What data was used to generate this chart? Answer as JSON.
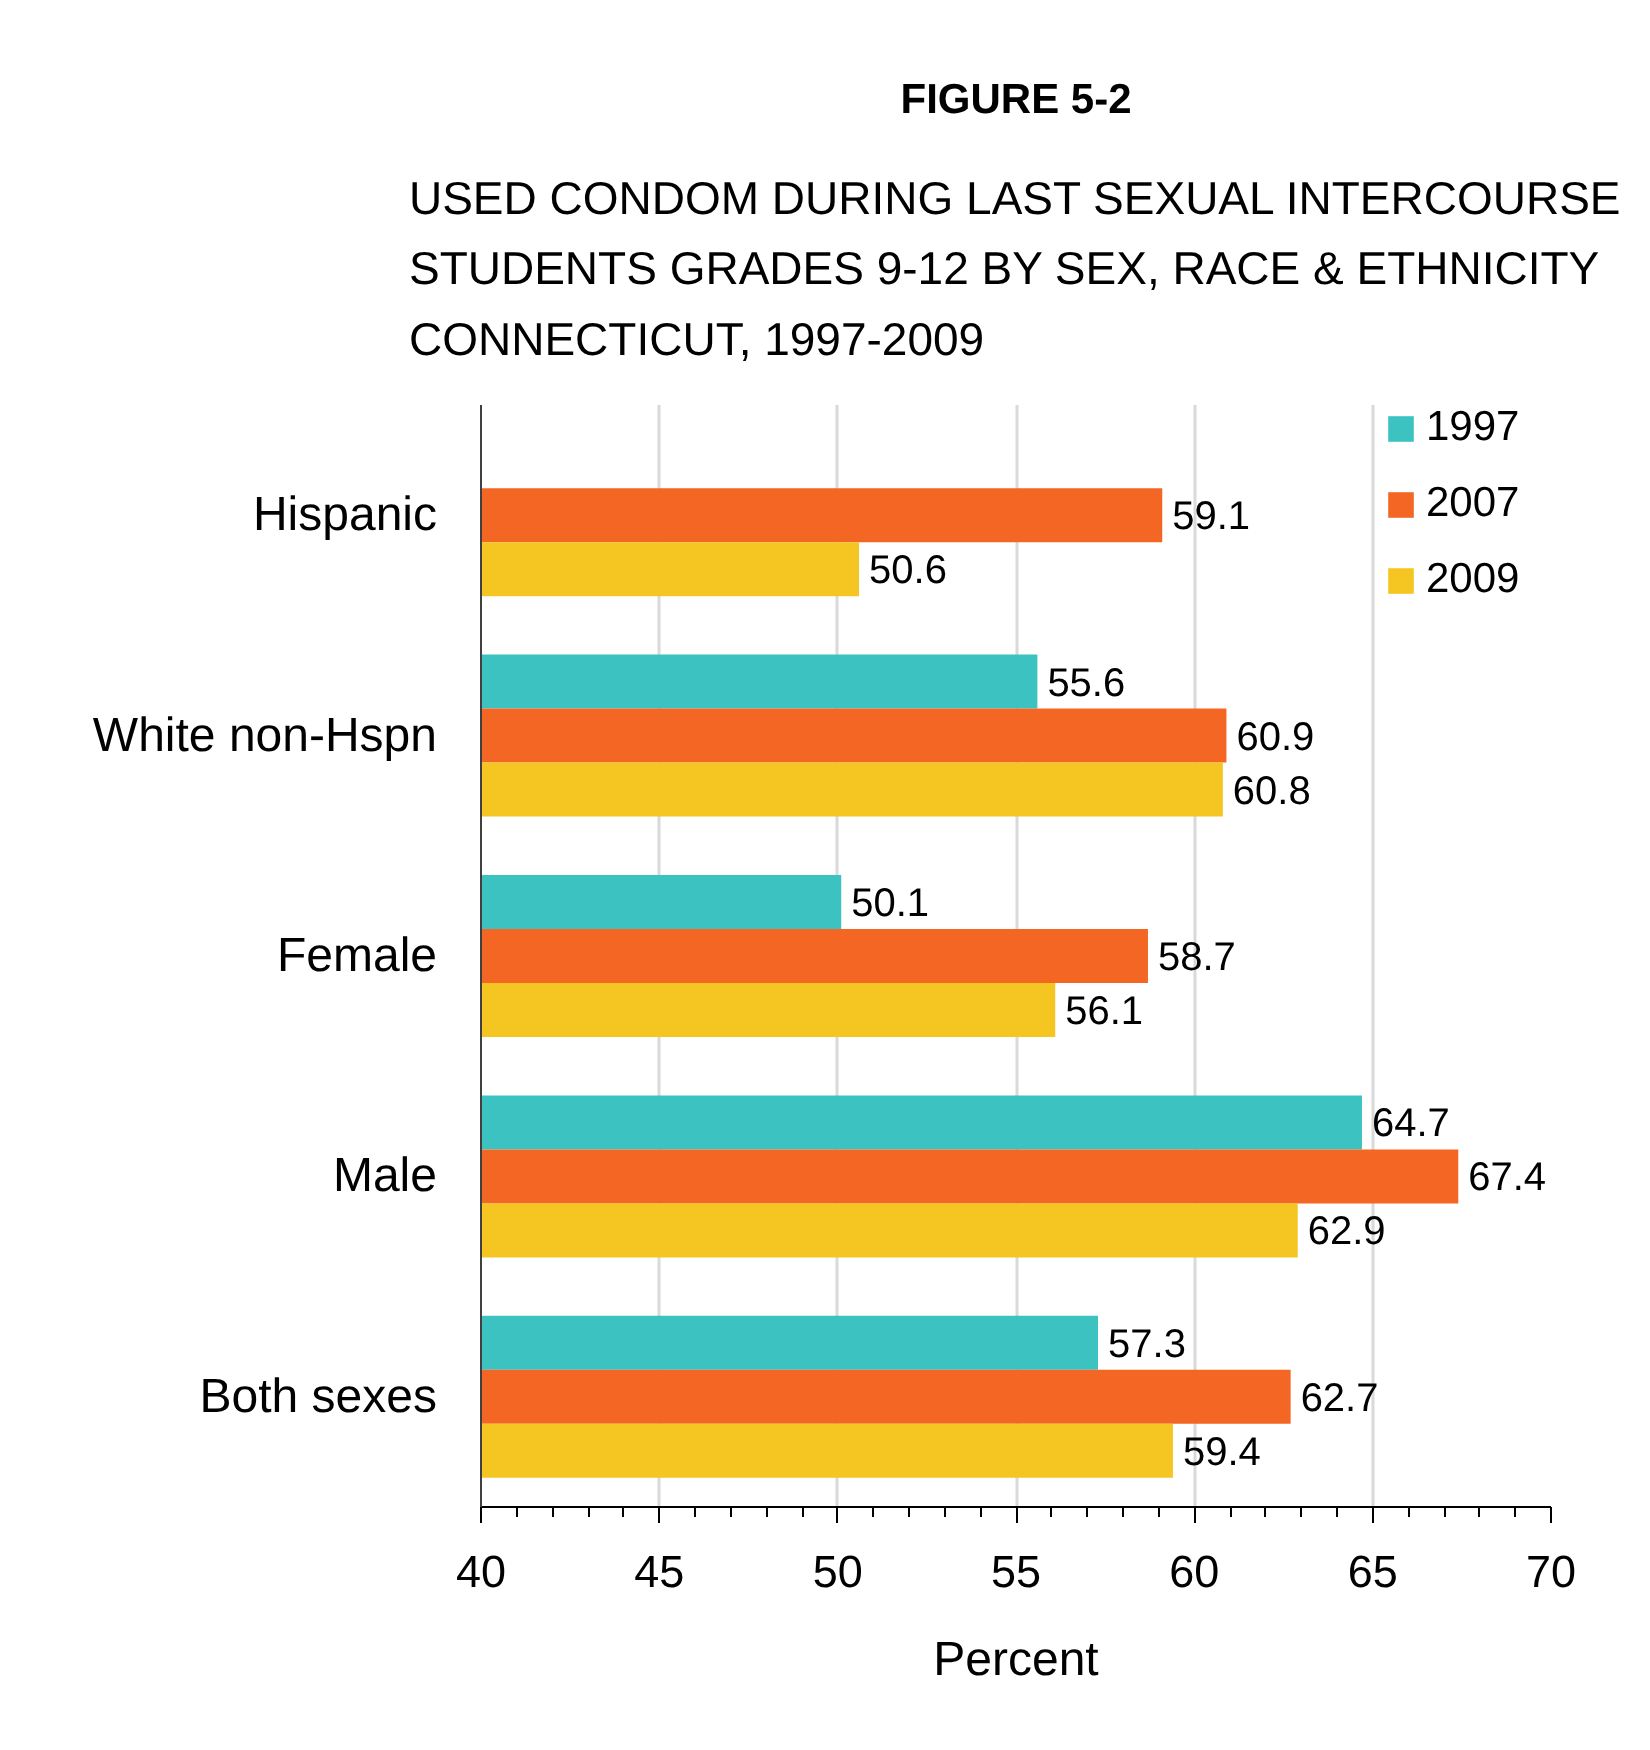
{
  "chart_data": {
    "type": "bar",
    "orientation": "horizontal",
    "title": "FIGURE 5-2",
    "subtitle": "USED CONDOM DURING LAST SEXUAL INTERCOURSE\nSTUDENTS GRADES 9-12 BY SEX, RACE & ETHNICITY\nCONNECTICUT, 1997-2009",
    "xlabel": "Percent",
    "categories": [
      "Hispanic",
      "White non-Hspn",
      "Female",
      "Male",
      "Both sexes"
    ],
    "series": [
      {
        "name": "1997",
        "color": "#3dc2c2",
        "values": [
          null,
          55.6,
          50.1,
          64.7,
          57.3
        ]
      },
      {
        "name": "2007",
        "color": "#f46623",
        "values": [
          59.1,
          60.9,
          58.7,
          67.4,
          62.7
        ]
      },
      {
        "name": "2009",
        "color": "#f5c622",
        "values": [
          50.6,
          60.8,
          56.1,
          62.9,
          59.4
        ]
      }
    ],
    "xlim": [
      40,
      70
    ],
    "xticks": [
      40,
      45,
      50,
      55,
      60,
      65,
      70
    ],
    "grid": "x",
    "legend": "top right",
    "data_labels": true
  }
}
